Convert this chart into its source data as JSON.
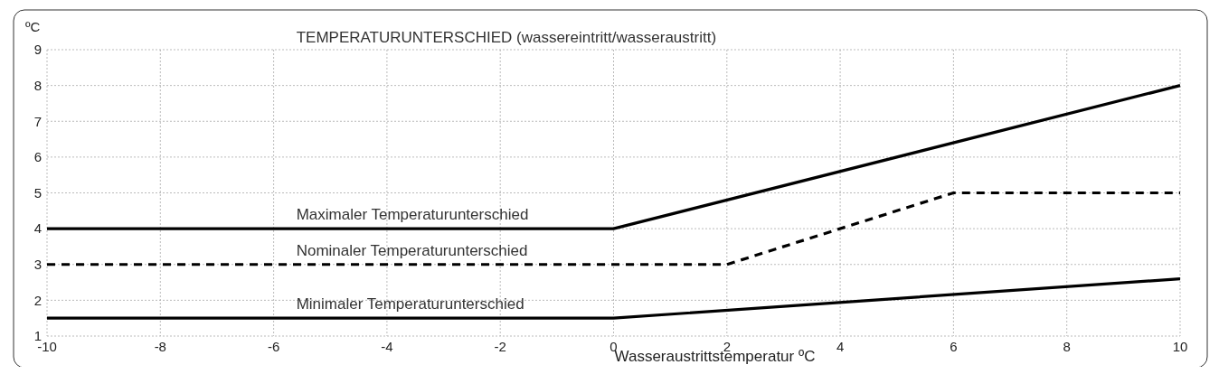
{
  "chart_data": {
    "type": "line",
    "title": "TEMPERATURUNTERSCHIED (wassereintritt/wasseraustritt)",
    "xlabel": "Wasseraustrittstemperatur ºC",
    "ylabel": "ºC",
    "xlim": [
      -10,
      10
    ],
    "xticks": [
      -10,
      -8,
      -6,
      -4,
      -2,
      0,
      2,
      4,
      6,
      8,
      10
    ],
    "ylim": [
      1,
      9
    ],
    "yticks": [
      1,
      2,
      3,
      4,
      5,
      6,
      7,
      8,
      9
    ],
    "grid": true,
    "marker": "none",
    "series": [
      {
        "name": "Maximaler Temperaturunterschied",
        "color": "#000000",
        "line_style": "solid",
        "x": [
          -10,
          0,
          10
        ],
        "values": [
          4,
          4,
          8
        ]
      },
      {
        "name": "Nominaler Temperaturunterschied",
        "color": "#000000",
        "line_style": "dashed",
        "x": [
          -10,
          2,
          6,
          10
        ],
        "values": [
          3,
          3,
          5,
          5
        ]
      },
      {
        "name": "Minimaler Temperaturunterschied",
        "color": "#000000",
        "line_style": "solid",
        "x": [
          -10,
          0,
          10
        ],
        "values": [
          1.5,
          1.5,
          2.6
        ]
      }
    ]
  }
}
